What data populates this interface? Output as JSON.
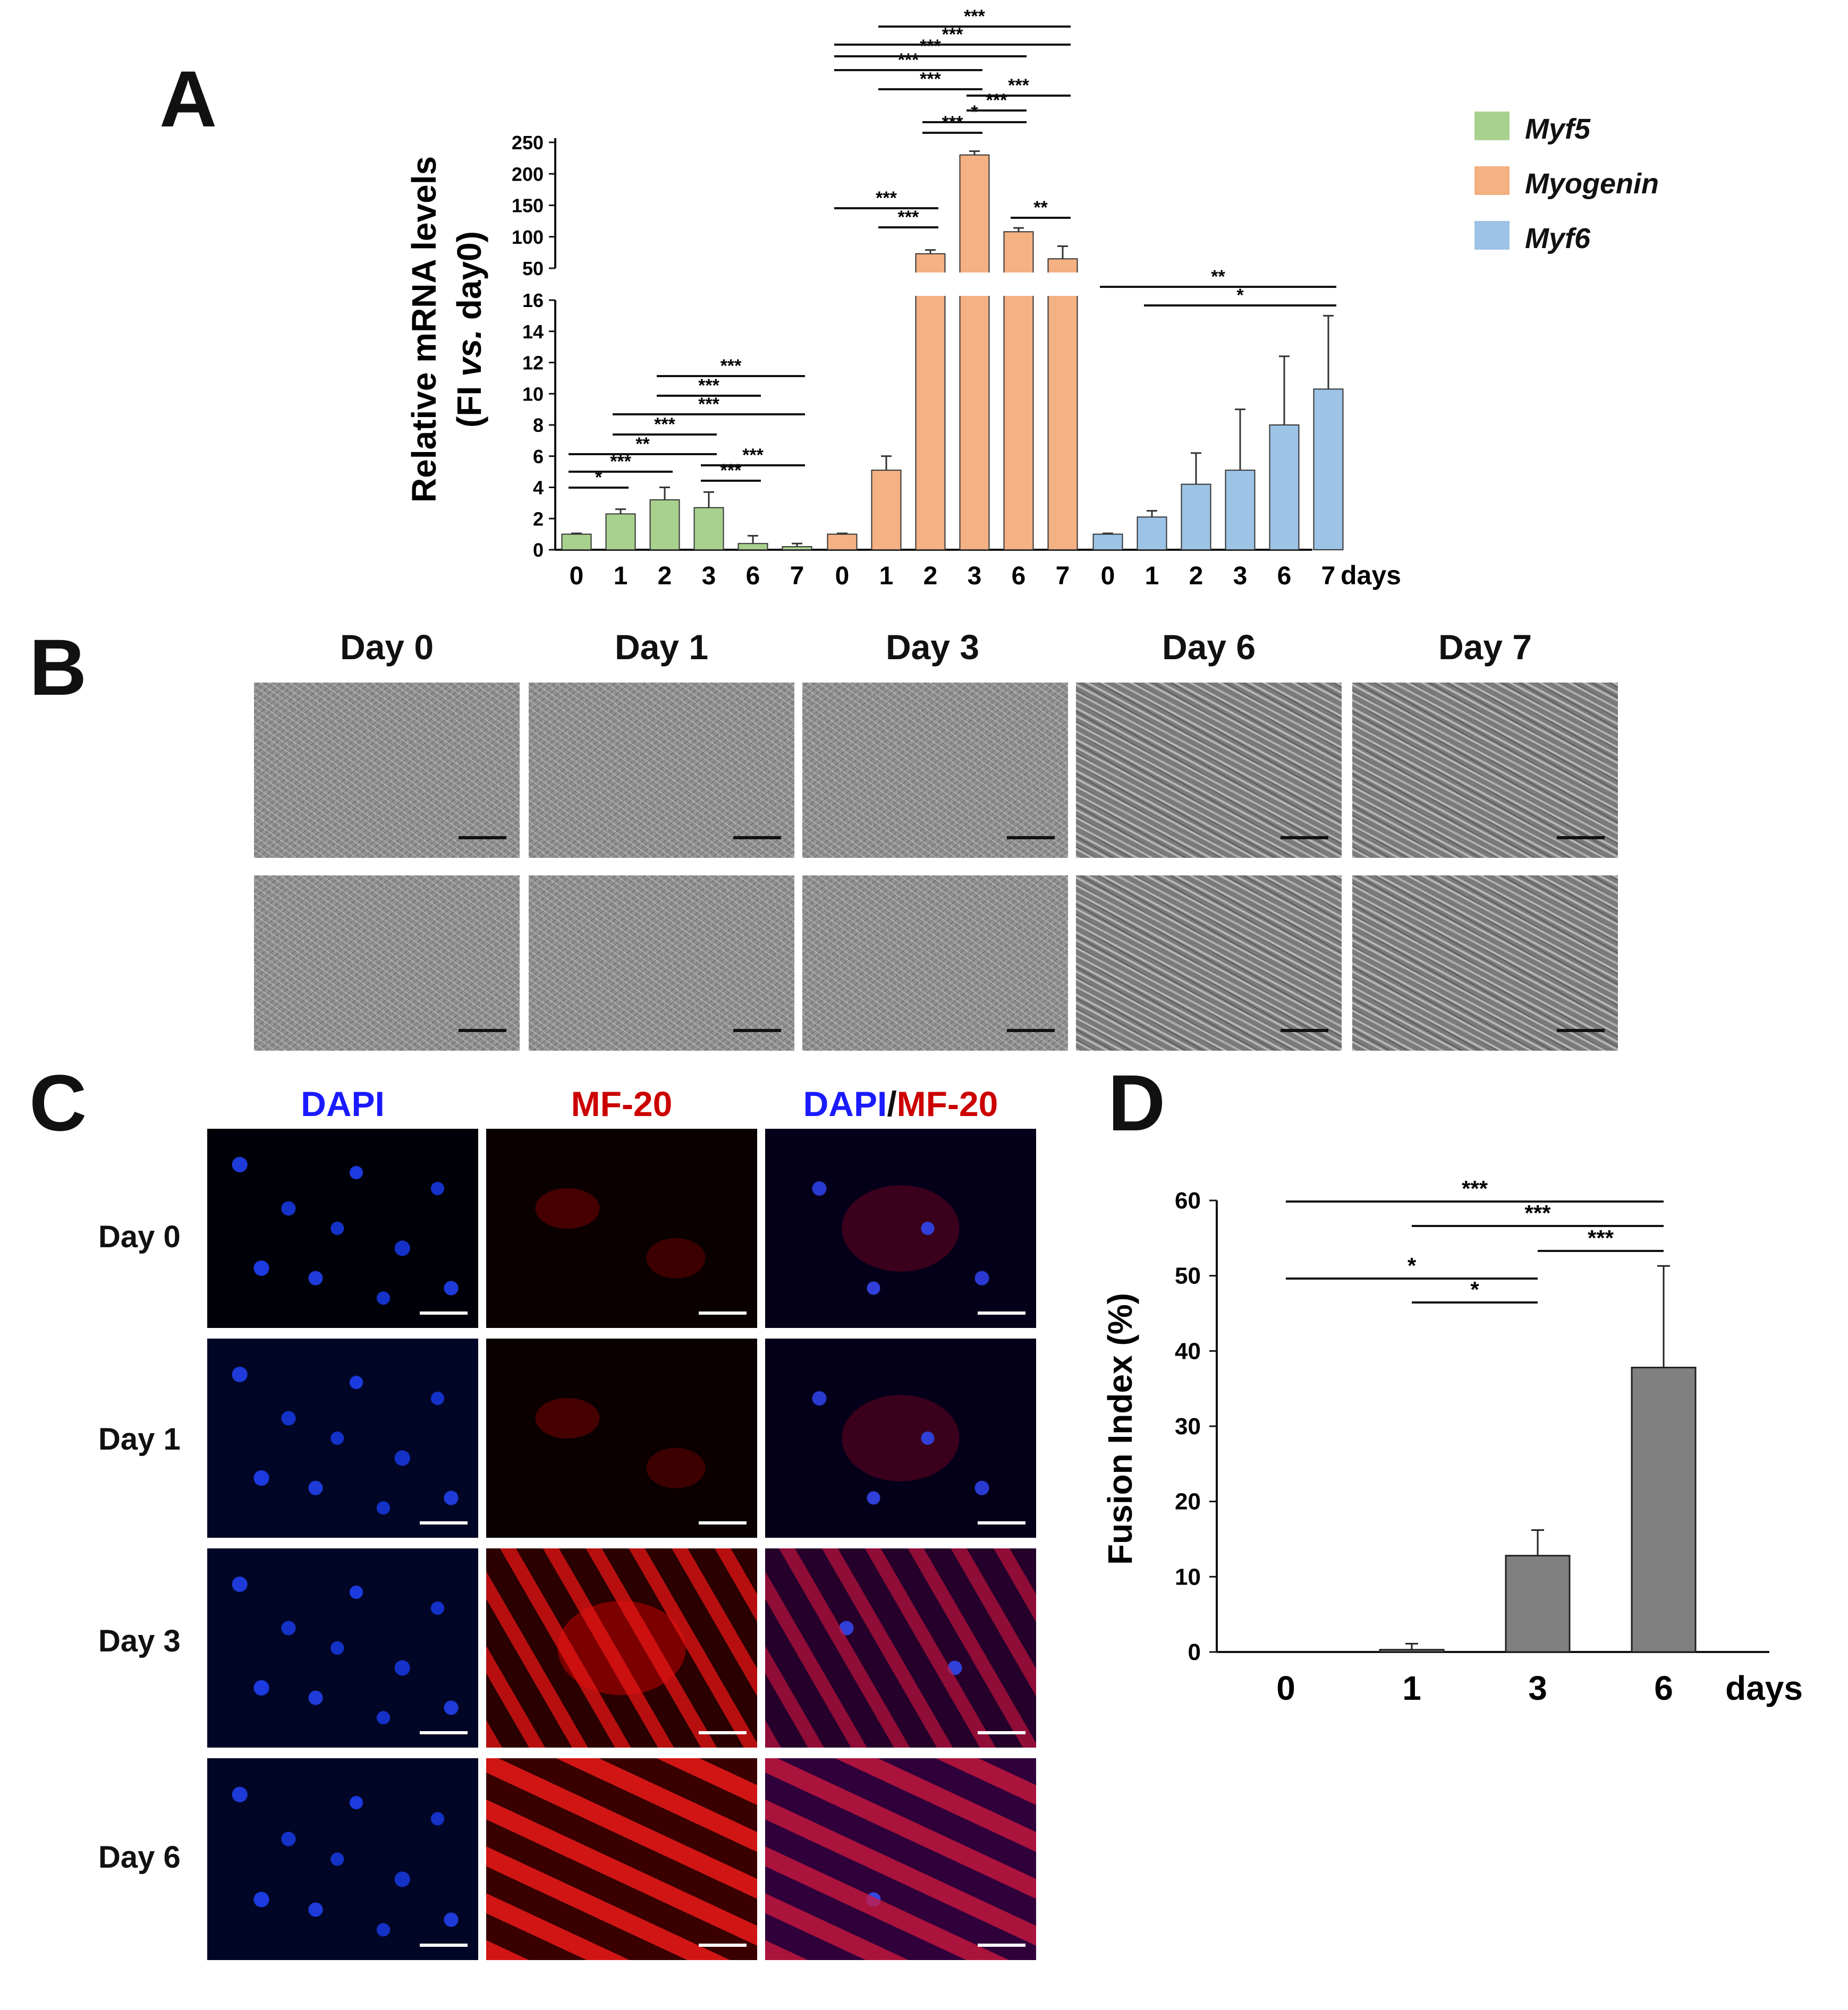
{
  "panels": {
    "a": "A",
    "b": "B",
    "c": "C",
    "d": "D"
  },
  "legend": [
    {
      "name": "Myf5",
      "color": "#a9d18e"
    },
    {
      "name": "Myogenin",
      "color": "#f4b183"
    },
    {
      "name": "Myf6",
      "color": "#9dc3e6"
    }
  ],
  "panelB": {
    "columns": [
      "Day 0",
      "Day 1",
      "Day 3",
      "Day 6",
      "Day 7"
    ]
  },
  "panelC": {
    "col_dapi": "DAPI",
    "col_mf20": "MF-20",
    "col_merge_dapi": "DAPI",
    "col_merge_sep": "/",
    "col_merge_mf20": "MF-20",
    "rows": [
      "Day 0",
      "Day 1",
      "Day 3",
      "Day 6"
    ],
    "colors": {
      "dapi": "#1a1aff",
      "mf20": "#cc0000"
    }
  },
  "chart_data": [
    {
      "panel": "A",
      "type": "bar",
      "ylabel_line1": "Relative mRNA levels",
      "ylabel_line2_pre": "(FI ",
      "ylabel_line2_it": "vs.",
      "ylabel_line2_post": " day0)",
      "xlabel": "days",
      "broken_axis": true,
      "ylim_lower": [
        0,
        16
      ],
      "ylim_upper": [
        50,
        250
      ],
      "yticks_lower": [
        "0",
        "2",
        "4",
        "6",
        "8",
        "10",
        "12",
        "14",
        "16"
      ],
      "yticks_upper": [
        "50",
        "100",
        "150",
        "200",
        "250"
      ],
      "series": [
        {
          "name": "Myf5",
          "color": "#a9d18e",
          "categories": [
            "0",
            "1",
            "2",
            "3",
            "6",
            "7"
          ],
          "values": [
            1.0,
            2.3,
            3.2,
            2.7,
            0.4,
            0.2
          ],
          "errors": [
            0.05,
            0.3,
            0.8,
            1.0,
            0.5,
            0.2
          ]
        },
        {
          "name": "Myogenin",
          "color": "#f4b183",
          "categories": [
            "0",
            "1",
            "2",
            "3",
            "6",
            "7"
          ],
          "values": [
            1.0,
            5.1,
            73,
            230,
            108,
            65
          ],
          "errors": [
            0.05,
            0.9,
            6,
            6,
            6,
            20
          ]
        },
        {
          "name": "Myf6",
          "color": "#9dc3e6",
          "categories": [
            "0",
            "1",
            "2",
            "3",
            "6",
            "7"
          ],
          "values": [
            1.0,
            2.1,
            4.2,
            5.1,
            8.0,
            10.3
          ],
          "errors": [
            0.05,
            0.4,
            2.0,
            3.9,
            4.4,
            4.7
          ]
        }
      ],
      "significance": [
        {
          "series": 0,
          "from": "0",
          "to": "1",
          "label": "*"
        },
        {
          "series": 0,
          "from": "0",
          "to": "2",
          "label": "***"
        },
        {
          "series": 0,
          "from": "0",
          "to": "3",
          "label": "**"
        },
        {
          "series": 0,
          "from": "1",
          "to": "3",
          "label": "***"
        },
        {
          "series": 0,
          "from": "1",
          "to": "7",
          "label": "***"
        },
        {
          "series": 0,
          "from": "2",
          "to": "6",
          "label": "***"
        },
        {
          "series": 0,
          "from": "2",
          "to": "7",
          "label": "***"
        },
        {
          "series": 0,
          "from": "3",
          "to": "6",
          "label": "***"
        },
        {
          "series": 0,
          "from": "3",
          "to": "7",
          "label": "***"
        },
        {
          "series": 1,
          "from": "0",
          "to": "2",
          "label": "***"
        },
        {
          "series": 1,
          "from": "1",
          "to": "2",
          "label": "***"
        },
        {
          "series": 1,
          "from": "6",
          "to": "7",
          "label": "**"
        },
        {
          "series": 1,
          "from": "2",
          "to": "3",
          "label": "***"
        },
        {
          "series": 1,
          "from": "2",
          "to": "6",
          "label": "*"
        },
        {
          "series": 1,
          "from": "3",
          "to": "6",
          "label": "***"
        },
        {
          "series": 1,
          "from": "3",
          "to": "7",
          "label": "***"
        },
        {
          "series": 1,
          "from": "1",
          "to": "3",
          "label": "***"
        },
        {
          "series": 1,
          "from": "0",
          "to": "3",
          "label": "***"
        },
        {
          "series": 1,
          "from": "0",
          "to": "6",
          "label": "***"
        },
        {
          "series": 1,
          "from": "0",
          "to": "7",
          "label": "***"
        },
        {
          "series": 1,
          "from": "1",
          "to": "7",
          "label": "***"
        },
        {
          "series": 2,
          "from": "0",
          "to": "7",
          "label": "**"
        },
        {
          "series": 2,
          "from": "1",
          "to": "7",
          "label": "*"
        }
      ]
    },
    {
      "panel": "D",
      "type": "bar",
      "ylabel": "Fusion Index (%)",
      "xlabel": "days",
      "categories": [
        "0",
        "1",
        "3",
        "6"
      ],
      "values": [
        0,
        0.3,
        12.8,
        37.8
      ],
      "errors": [
        0,
        0.8,
        3.4,
        13.5
      ],
      "ylim": [
        0,
        60
      ],
      "yticks": [
        "0",
        "10",
        "20",
        "30",
        "40",
        "50",
        "60"
      ],
      "color": "#808080",
      "significance": [
        {
          "from": "0",
          "to": "6",
          "label": "***"
        },
        {
          "from": "1",
          "to": "6",
          "label": "***"
        },
        {
          "from": "3",
          "to": "6",
          "label": "***"
        },
        {
          "from": "0",
          "to": "3",
          "label": "*"
        },
        {
          "from": "1",
          "to": "3",
          "label": "*"
        }
      ]
    }
  ]
}
